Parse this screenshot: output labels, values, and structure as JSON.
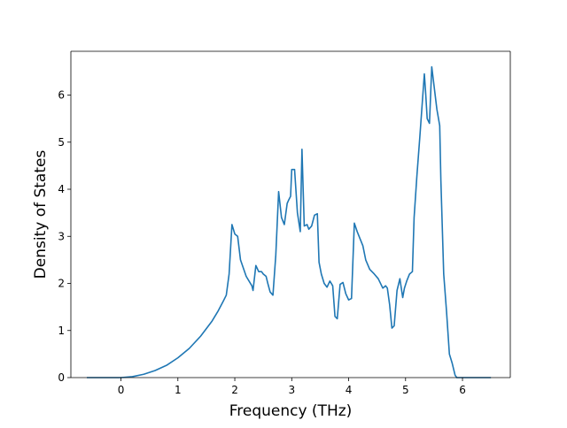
{
  "chart_data": {
    "type": "line",
    "title": "",
    "xlabel": "Frequency (THz)",
    "ylabel": "Density of States",
    "xlim": [
      -0.88,
      6.84
    ],
    "ylim": [
      0,
      6.93
    ],
    "xticks": [
      0,
      1,
      2,
      3,
      4,
      5,
      6
    ],
    "yticks": [
      0,
      1,
      2,
      3,
      4,
      5,
      6
    ],
    "grid": false,
    "legend": "none",
    "series": [
      {
        "color": "#1f77b4",
        "x": [
          -0.6,
          -0.3,
          0,
          0.2,
          0.4,
          0.6,
          0.8,
          1.0,
          1.2,
          1.4,
          1.6,
          1.7,
          1.8,
          1.85,
          1.9,
          1.95,
          2.0,
          2.05,
          2.1,
          2.2,
          2.3,
          2.32,
          2.37,
          2.42,
          2.47,
          2.5,
          2.55,
          2.58,
          2.62,
          2.67,
          2.72,
          2.77,
          2.82,
          2.87,
          2.92,
          2.95,
          2.98,
          3.0,
          3.05,
          3.1,
          3.15,
          3.18,
          3.22,
          3.27,
          3.3,
          3.35,
          3.4,
          3.45,
          3.48,
          3.52,
          3.57,
          3.62,
          3.67,
          3.72,
          3.76,
          3.8,
          3.85,
          3.9,
          3.95,
          4.0,
          4.05,
          4.1,
          4.15,
          4.2,
          4.25,
          4.3,
          4.37,
          4.45,
          4.52,
          4.6,
          4.65,
          4.68,
          4.72,
          4.76,
          4.8,
          4.85,
          4.9,
          4.95,
          4.98,
          5.02,
          5.07,
          5.12,
          5.15,
          5.2,
          5.25,
          5.33,
          5.35,
          5.38,
          5.42,
          5.46,
          5.5,
          5.55,
          5.6,
          5.62,
          5.67,
          5.72,
          5.77,
          5.82,
          5.87,
          5.9,
          6.0,
          6.2,
          6.5
        ],
        "y": [
          0,
          0,
          0,
          0.02,
          0.07,
          0.15,
          0.26,
          0.42,
          0.62,
          0.88,
          1.2,
          1.4,
          1.63,
          1.75,
          2.2,
          3.25,
          3.05,
          3.0,
          2.5,
          2.15,
          1.95,
          1.85,
          2.38,
          2.25,
          2.25,
          2.2,
          2.15,
          2.0,
          1.82,
          1.75,
          2.6,
          3.95,
          3.4,
          3.25,
          3.7,
          3.78,
          3.85,
          4.42,
          4.42,
          3.5,
          3.1,
          4.85,
          3.22,
          3.25,
          3.15,
          3.22,
          3.45,
          3.48,
          2.45,
          2.2,
          2.0,
          1.92,
          2.05,
          1.95,
          1.3,
          1.25,
          1.98,
          2.02,
          1.78,
          1.65,
          1.68,
          3.28,
          3.1,
          2.95,
          2.8,
          2.5,
          2.3,
          2.2,
          2.1,
          1.9,
          1.95,
          1.9,
          1.55,
          1.05,
          1.1,
          1.85,
          2.1,
          1.7,
          1.9,
          2.05,
          2.2,
          2.25,
          3.4,
          4.3,
          5.1,
          6.45,
          6.1,
          5.5,
          5.4,
          6.6,
          6.2,
          5.7,
          5.35,
          4.2,
          2.2,
          1.4,
          0.5,
          0.3,
          0.05,
          0,
          0,
          0,
          0
        ]
      }
    ]
  }
}
